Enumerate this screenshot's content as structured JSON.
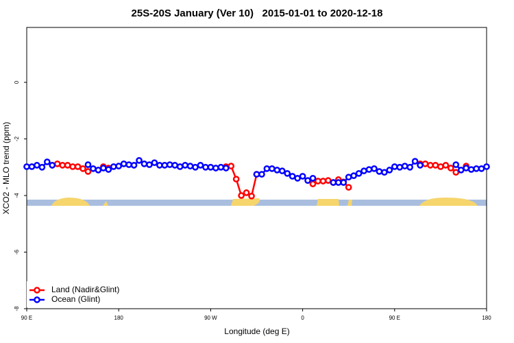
{
  "chart_data": {
    "type": "line",
    "title": "25S-20S January (Ver 10)   2015-01-01 to 2020-12-18",
    "x_label": "Longitude (deg E)",
    "y_label": "XCO2 - MLO trend (ppm)",
    "x": [
      90,
      95,
      100,
      105,
      110,
      115,
      120,
      125,
      130,
      135,
      140,
      145,
      150,
      155,
      160,
      165,
      170,
      175,
      180,
      185,
      190,
      195,
      200,
      205,
      210,
      215,
      220,
      225,
      230,
      235,
      240,
      245,
      250,
      255,
      260,
      265,
      270,
      275,
      280,
      285,
      290,
      295,
      300,
      305,
      310,
      315,
      320,
      325,
      330,
      335,
      340,
      345,
      350,
      355,
      360,
      365,
      370,
      375,
      380,
      385,
      390,
      395,
      400,
      405,
      410,
      415,
      420,
      425,
      430,
      435,
      440,
      445,
      450,
      455,
      460,
      465,
      470,
      475,
      480,
      485,
      490,
      495,
      500,
      505,
      510,
      515,
      520,
      525,
      530,
      535,
      540
    ],
    "xlim": [
      90,
      540
    ],
    "xticks": [
      {
        "value": 90,
        "label": "90 E"
      },
      180,
      {
        "value": 270,
        "label": "90 W"
      },
      {
        "value": 360,
        "label": "0"
      },
      {
        "value": 450,
        "label": "90 E"
      },
      {
        "value": 540,
        "label": "180"
      }
    ],
    "ylim": [
      -8,
      1.94
    ],
    "yticks": [
      0,
      -2,
      -4,
      -6,
      -8
    ],
    "legend": "bottom-left",
    "series": [
      {
        "name": "Land (Nadir&Glint)",
        "color": "#ff0000",
        "values": [
          null,
          null,
          null,
          null,
          null,
          -2.93,
          -2.88,
          -2.93,
          -2.93,
          -2.98,
          -2.98,
          -3.05,
          -3.15,
          null,
          null,
          -2.98,
          -3.03,
          null,
          null,
          null,
          null,
          null,
          null,
          null,
          null,
          null,
          null,
          null,
          null,
          null,
          null,
          null,
          null,
          null,
          null,
          null,
          null,
          null,
          null,
          -2.98,
          -2.96,
          -3.42,
          -4.0,
          -3.9,
          -4.02,
          -3.25,
          null,
          null,
          null,
          null,
          null,
          null,
          null,
          null,
          null,
          null,
          -3.59,
          -3.49,
          -3.49,
          -3.47,
          -3.54,
          -3.44,
          -3.52,
          -3.71,
          null,
          null,
          null,
          null,
          null,
          null,
          null,
          null,
          null,
          null,
          null,
          null,
          null,
          -2.88,
          -2.88,
          -2.93,
          -2.93,
          -2.98,
          -2.93,
          -3.03,
          -3.18,
          null,
          -2.96,
          null,
          null,
          null,
          null
        ]
      },
      {
        "name": "Ocean (Glint)",
        "color": "#0000ff",
        "values": [
          -2.98,
          -2.98,
          -2.93,
          -3.0,
          -2.81,
          -2.93,
          null,
          null,
          null,
          null,
          null,
          null,
          -2.91,
          -3.05,
          -3.1,
          -3.03,
          -3.08,
          -2.98,
          -2.96,
          -2.88,
          -2.91,
          -2.93,
          -2.76,
          -2.88,
          -2.91,
          -2.84,
          -2.93,
          -2.93,
          -2.91,
          -2.93,
          -2.98,
          -2.93,
          -2.96,
          -3.0,
          -2.93,
          -3.0,
          -3.0,
          -3.03,
          -3.0,
          -3.03,
          null,
          null,
          null,
          null,
          null,
          -3.25,
          -3.25,
          -3.05,
          -3.05,
          -3.1,
          -3.13,
          -3.22,
          -3.32,
          -3.39,
          -3.32,
          -3.47,
          -3.39,
          null,
          null,
          null,
          -3.54,
          -3.54,
          -3.54,
          -3.35,
          -3.3,
          -3.22,
          -3.13,
          -3.08,
          -3.05,
          -3.15,
          -3.18,
          -3.1,
          -2.98,
          -3.0,
          -2.96,
          -3.0,
          -2.79,
          -2.93,
          null,
          null,
          null,
          null,
          null,
          null,
          -2.91,
          -3.1,
          -3.03,
          -3.08,
          -3.05,
          -3.05,
          -2.98
        ]
      }
    ]
  }
}
